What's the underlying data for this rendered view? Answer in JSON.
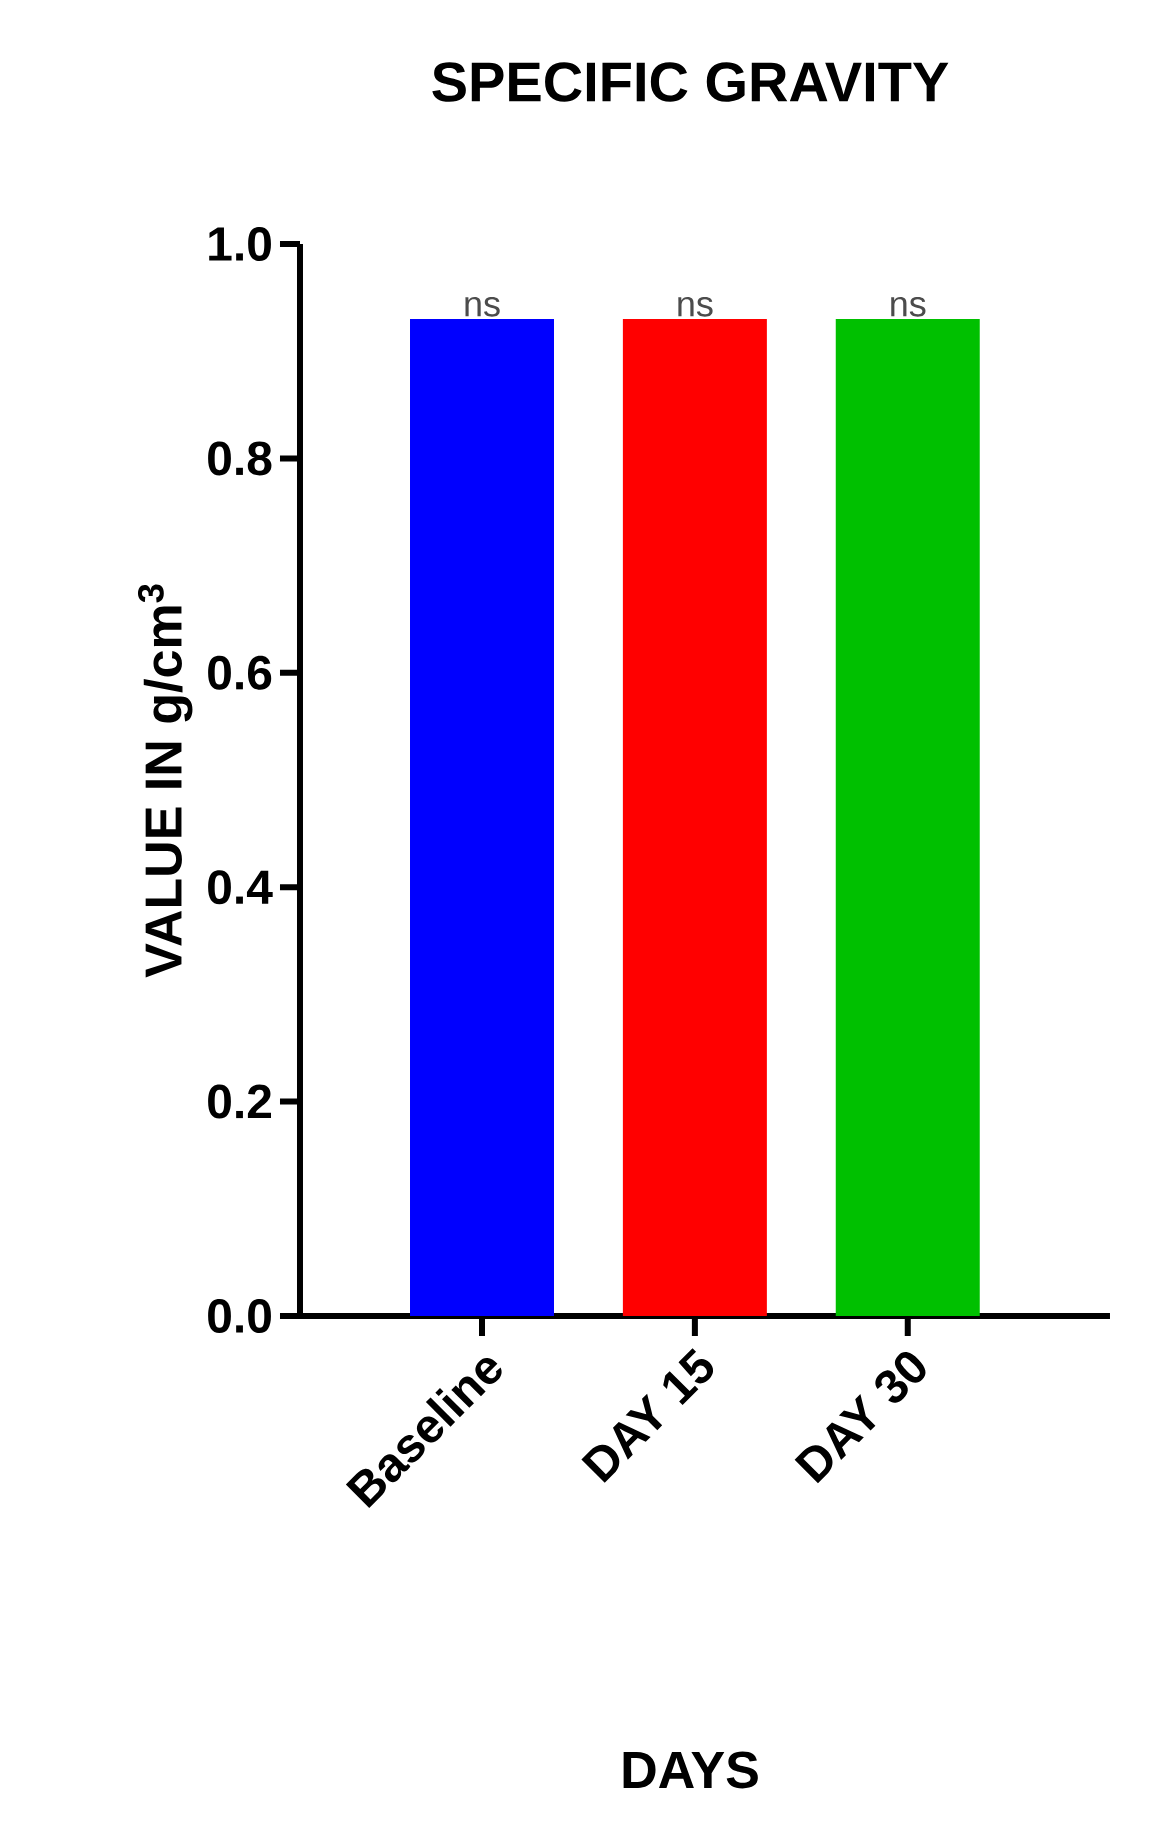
{
  "chart_data": {
    "type": "bar",
    "title": "SPECIFIC GRAVITY",
    "xlabel": "DAYS",
    "ylabel": "VALUE IN g/cm$^{3}$",
    "categories": [
      "Baseline",
      "DAY 15",
      "DAY 30"
    ],
    "values": [
      0.93,
      0.93,
      0.93
    ],
    "colors": [
      "#0000ff",
      "#ff0000",
      "#00c000"
    ],
    "ylim": [
      0,
      1.0
    ],
    "yticks": [
      {
        "value": 0,
        "label": "0.0"
      },
      {
        "value": 0.2,
        "label": "0.2"
      },
      {
        "value": 0.4,
        "label": "0.4"
      },
      {
        "value": 0.6,
        "label": "0.6"
      },
      {
        "value": 0.8,
        "label": "0.8"
      },
      {
        "value": 1.0,
        "label": "1.0"
      }
    ],
    "annotations": [
      {
        "text": "ns",
        "x": "Baseline",
        "y": 0.93
      },
      {
        "text": "ns",
        "x": "DAY 15",
        "y": 0.93
      },
      {
        "text": "ns",
        "x": "DAY 30",
        "y": 0.93
      }
    ],
    "grid": false
  }
}
